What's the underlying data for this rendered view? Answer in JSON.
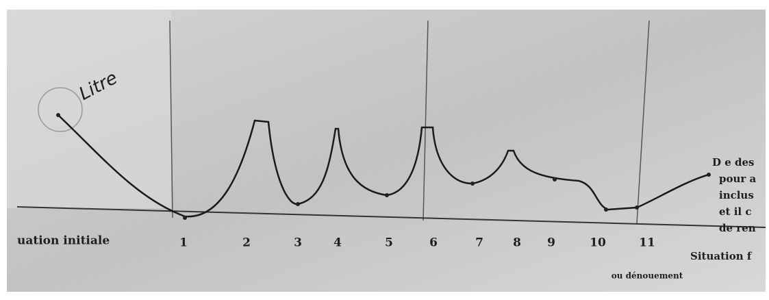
{
  "title": "Litre",
  "start_label": "uation initiale",
  "steps": [
    "1",
    "2",
    "3",
    "4",
    "5",
    "6",
    "7",
    "8",
    "9",
    "10",
    "11"
  ],
  "step_note": "ou dénouement",
  "end_label": "Situation f",
  "side_note": [
    "D e des",
    "pour a",
    "inclus",
    "et il c",
    "de ren"
  ]
}
